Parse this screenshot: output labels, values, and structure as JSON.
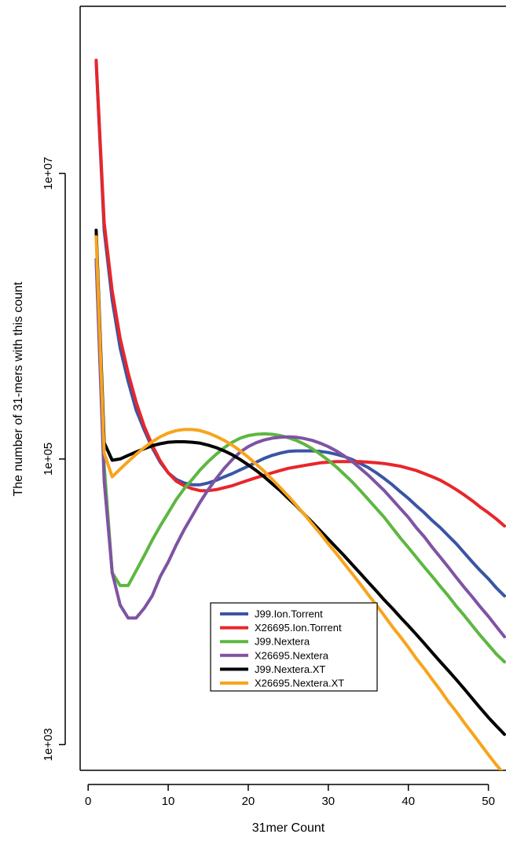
{
  "chart_data": {
    "type": "line",
    "xlabel": "31mer Count",
    "ylabel": "The number of 31-mers with this count",
    "x_ticks": [
      "0",
      "10",
      "20",
      "30",
      "40",
      "50"
    ],
    "y_ticks": [
      "1e+03",
      "1e+05",
      "1e+07"
    ],
    "y_scale": "log",
    "xlim": [
      -1,
      52.2
    ],
    "ylim_log10": [
      2.82,
      8.17
    ],
    "legend_position": "bottom-left",
    "grid": false,
    "series": [
      {
        "name": "J99.Ion.Torrent",
        "color": "#3B55A4",
        "x": [
          1,
          2,
          3,
          4,
          5,
          6,
          7,
          8,
          9,
          10,
          11,
          12,
          13,
          14,
          15,
          16,
          17,
          18,
          19,
          20,
          21,
          22,
          23,
          24,
          25,
          26,
          27,
          28,
          29,
          30,
          31,
          32,
          33,
          34,
          35,
          36,
          37,
          38,
          39,
          40,
          41,
          42,
          43,
          44,
          45,
          46,
          47,
          48,
          49,
          50,
          51,
          52
        ],
        "y": [
          60000000,
          4000000,
          1300000,
          600000,
          350000,
          220000,
          160000,
          120000,
          95000,
          80000,
          72000,
          68000,
          66000,
          66000,
          68000,
          71000,
          75000,
          79000,
          84000,
          89000,
          95000,
          101000,
          106000,
          110000,
          113000,
          114000,
          114000,
          114000,
          113000,
          111000,
          108000,
          104000,
          99000,
          93000,
          87000,
          80000,
          73000,
          66000,
          59000,
          53000,
          47000,
          42000,
          37000,
          33000,
          29000,
          25500,
          22000,
          19000,
          16500,
          14500,
          12500,
          11000
        ]
      },
      {
        "name": "X26695.Ion.Torrent",
        "color": "#E8262A",
        "x": [
          1,
          2,
          3,
          4,
          5,
          6,
          7,
          8,
          9,
          10,
          11,
          12,
          13,
          14,
          15,
          16,
          17,
          18,
          19,
          20,
          21,
          22,
          23,
          24,
          25,
          26,
          27,
          28,
          29,
          30,
          31,
          32,
          33,
          34,
          35,
          36,
          37,
          38,
          39,
          40,
          41,
          42,
          43,
          44,
          45,
          46,
          47,
          48,
          49,
          50,
          51,
          52
        ],
        "y": [
          62000000,
          4500000,
          1500000,
          700000,
          400000,
          250000,
          170000,
          125000,
          97000,
          80000,
          70000,
          65000,
          62000,
          60000,
          60000,
          61000,
          63000,
          65000,
          68000,
          71000,
          74000,
          77000,
          80000,
          83000,
          86000,
          88000,
          90000,
          92000,
          94000,
          95000,
          96000,
          96000,
          96000,
          96000,
          95000,
          94000,
          93000,
          91000,
          89000,
          86000,
          83000,
          79000,
          75000,
          71000,
          66000,
          61000,
          56000,
          51000,
          46000,
          42000,
          38000,
          34000
        ]
      },
      {
        "name": "J99.Nextera",
        "color": "#5DB741",
        "x": [
          1,
          2,
          3,
          4,
          5,
          6,
          7,
          8,
          9,
          10,
          11,
          12,
          13,
          14,
          15,
          16,
          17,
          18,
          19,
          20,
          21,
          22,
          23,
          24,
          25,
          26,
          27,
          28,
          29,
          30,
          31,
          32,
          33,
          34,
          35,
          36,
          37,
          38,
          39,
          40,
          41,
          42,
          43,
          44,
          45,
          46,
          47,
          48,
          49,
          50,
          51,
          52
        ],
        "y": [
          2500000,
          90000,
          16000,
          13000,
          13000,
          16500,
          21000,
          27000,
          34000,
          42000,
          52000,
          62000,
          72000,
          84000,
          96000,
          108000,
          120000,
          131000,
          140000,
          146000,
          149000,
          150000,
          149000,
          146000,
          141000,
          135000,
          127000,
          118000,
          108000,
          98000,
          88000,
          78000,
          69000,
          60000,
          52000,
          45000,
          39000,
          33000,
          28000,
          24000,
          20500,
          17500,
          15000,
          12800,
          11000,
          9300,
          8000,
          6800,
          5800,
          5000,
          4300,
          3800
        ]
      },
      {
        "name": "X26695.Nextera",
        "color": "#7F53A3",
        "x": [
          1,
          2,
          3,
          4,
          5,
          6,
          7,
          8,
          9,
          10,
          11,
          12,
          13,
          14,
          15,
          16,
          17,
          18,
          19,
          20,
          21,
          22,
          23,
          24,
          25,
          26,
          27,
          28,
          29,
          30,
          31,
          32,
          33,
          34,
          35,
          36,
          37,
          38,
          39,
          40,
          41,
          42,
          43,
          44,
          45,
          46,
          47,
          48,
          49,
          50,
          51,
          52
        ],
        "y": [
          2500000,
          70000,
          16000,
          9500,
          7700,
          7700,
          9000,
          11000,
          15000,
          19000,
          25000,
          32000,
          40000,
          50000,
          61000,
          73000,
          86000,
          99000,
          112000,
          122000,
          130000,
          136000,
          140000,
          142000,
          143000,
          142000,
          139000,
          135000,
          129000,
          122000,
          114000,
          105000,
          96000,
          86000,
          77000,
          68000,
          60000,
          52000,
          45000,
          39000,
          33000,
          28500,
          24000,
          20500,
          17500,
          14800,
          12600,
          10800,
          9200,
          7900,
          6700,
          5700
        ]
      },
      {
        "name": "J99.Nextera.XT",
        "color": "#000000",
        "x": [
          1,
          2,
          3,
          4,
          5,
          6,
          7,
          8,
          9,
          10,
          11,
          12,
          13,
          14,
          15,
          16,
          17,
          18,
          19,
          20,
          21,
          22,
          23,
          24,
          25,
          26,
          27,
          28,
          29,
          30,
          31,
          32,
          33,
          34,
          35,
          36,
          37,
          38,
          39,
          40,
          41,
          42,
          43,
          44,
          45,
          46,
          47,
          48,
          49,
          50,
          51,
          52
        ],
        "y": [
          4000000,
          130000,
          98000,
          100000,
          106000,
          112000,
          118000,
          124000,
          128000,
          131000,
          132000,
          132000,
          131000,
          129000,
          125000,
          120000,
          114000,
          107000,
          99000,
          91000,
          83000,
          75000,
          67000,
          60000,
          53000,
          47000,
          41000,
          36000,
          31500,
          27500,
          24000,
          21000,
          18200,
          15800,
          13700,
          11900,
          10300,
          9000,
          7800,
          6800,
          5900,
          5100,
          4400,
          3800,
          3300,
          2850,
          2450,
          2100,
          1800,
          1550,
          1350,
          1180
        ]
      },
      {
        "name": "X26695.Nextera.XT",
        "color": "#F7A41D",
        "x": [
          1,
          2,
          3,
          4,
          5,
          6,
          7,
          8,
          9,
          10,
          11,
          12,
          13,
          14,
          15,
          16,
          17,
          18,
          19,
          20,
          21,
          22,
          23,
          24,
          25,
          26,
          27,
          28,
          29,
          30,
          31,
          32,
          33,
          34,
          35,
          36,
          37,
          38,
          39,
          40,
          41,
          42,
          43,
          44,
          45,
          46,
          47,
          48,
          49,
          50,
          51,
          52
        ],
        "y": [
          3600000,
          110000,
          75000,
          85000,
          96000,
          108000,
          120000,
          132000,
          143000,
          152000,
          158000,
          161000,
          161000,
          158000,
          152000,
          144000,
          135000,
          125000,
          114000,
          103000,
          92000,
          82000,
          72000,
          63000,
          55000,
          47500,
          41000,
          35000,
          30000,
          25500,
          21800,
          18500,
          15700,
          13300,
          11200,
          9500,
          8000,
          6700,
          5700,
          4800,
          4000,
          3400,
          2850,
          2400,
          2000,
          1700,
          1420,
          1200,
          1010,
          850,
          720,
          620
        ]
      }
    ]
  }
}
